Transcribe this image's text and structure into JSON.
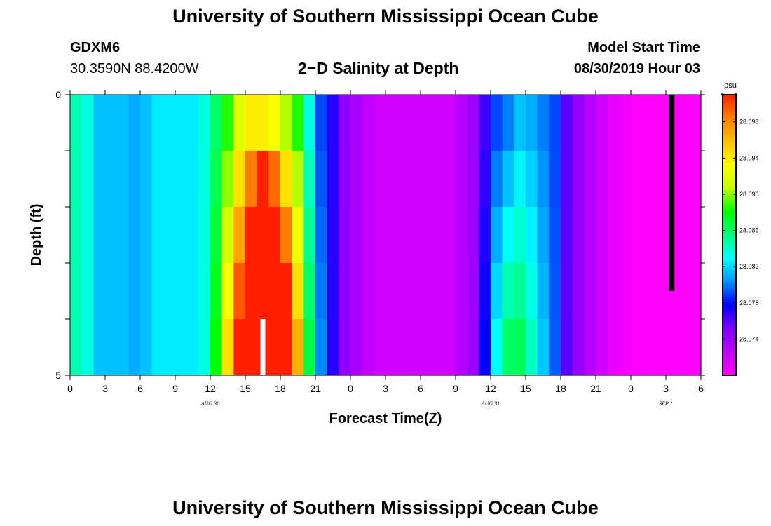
{
  "page": {
    "title_top": "University of Southern Mississippi Ocean Cube",
    "title_bottom": "University of Southern Mississippi Ocean Cube",
    "station_id": "GDXM6",
    "location": "30.3590N 88.4200W",
    "plot_title": "2−D Salinity at Depth",
    "start_time_label": "Model Start Time",
    "start_time_value": "08/30/2019 Hour 03"
  },
  "chart_data": {
    "type": "heatmap",
    "title": "2−D Salinity at Depth",
    "xlabel": "Forecast Time(Z)",
    "ylabel": "Depth (ft)",
    "x_tick_labels": [
      "0",
      "3",
      "6",
      "9",
      "12",
      "15",
      "18",
      "21",
      "0",
      "3",
      "6",
      "9",
      "12",
      "15",
      "18",
      "21",
      "0",
      "3",
      "6"
    ],
    "date_labels": [
      {
        "text": "AUG 30",
        "at_tick": 4
      },
      {
        "text": "AUG 31",
        "at_tick": 12
      },
      {
        "text": "SEP 1",
        "at_tick": 17
      }
    ],
    "y_tick_labels": [
      "0",
      "5"
    ],
    "ylim": [
      0,
      5
    ],
    "x_range_hours": [
      0,
      54
    ],
    "colorbar": {
      "unit": "psu",
      "range": [
        28.07,
        28.101
      ],
      "tick_labels": [
        "28.098",
        "28.094",
        "28.090",
        "28.086",
        "28.082",
        "28.078",
        "28.074"
      ],
      "colors": [
        "#ff00ff",
        "#c000ff",
        "#8000ff",
        "#0000ff",
        "#0090ff",
        "#00ffff",
        "#00ff80",
        "#00ff00",
        "#c0ff00",
        "#ffff00",
        "#ffc000",
        "#ff8000",
        "#ff2000"
      ]
    },
    "depth_levels_ft": [
      0.5,
      1.5,
      2.5,
      3.5,
      4.5
    ],
    "surface_profile_by_hour": [
      28.0845,
      28.0835,
      28.0815,
      28.0815,
      28.0815,
      28.081,
      28.0815,
      28.0825,
      28.0825,
      28.0825,
      28.0825,
      28.0835,
      28.086,
      28.0885,
      28.092,
      28.094,
      28.094,
      28.093,
      28.0905,
      28.0885,
      28.0835,
      28.079,
      28.077,
      28.0745,
      28.0735,
      28.0725,
      28.072,
      28.072,
      28.072,
      28.072,
      28.072,
      28.072,
      28.072,
      28.073,
      28.074,
      28.0765,
      28.079,
      28.08,
      28.0815,
      28.081,
      28.08,
      28.079,
      28.076,
      28.0745,
      28.073,
      28.072,
      28.071,
      28.0705,
      28.07,
      28.07,
      28.07,
      28.07,
      28.07,
      28.07
    ],
    "depth_increase_by_hour": [
      0,
      0,
      0,
      0,
      0,
      0,
      0,
      0,
      0,
      0,
      0,
      0,
      0.0005,
      0.0015,
      0.0025,
      0.0045,
      0.007,
      0.006,
      0.004,
      0.002,
      0.0008,
      0.0003,
      0,
      0,
      0,
      0,
      0,
      0,
      0,
      0,
      0,
      0,
      0,
      0,
      0,
      0.0003,
      0.001,
      0.0015,
      0.0012,
      0.0008,
      0.0004,
      0.0001,
      0,
      0,
      0,
      0,
      0,
      0,
      0,
      0,
      0,
      0,
      0,
      0
    ],
    "annotations": [
      {
        "type": "white_bar",
        "hour": 16.5,
        "depth_from": 4.0,
        "depth_to": 5.0
      },
      {
        "type": "black_bar",
        "hour": 51.5,
        "depth_from": 0.0,
        "depth_to": 3.5
      }
    ]
  }
}
